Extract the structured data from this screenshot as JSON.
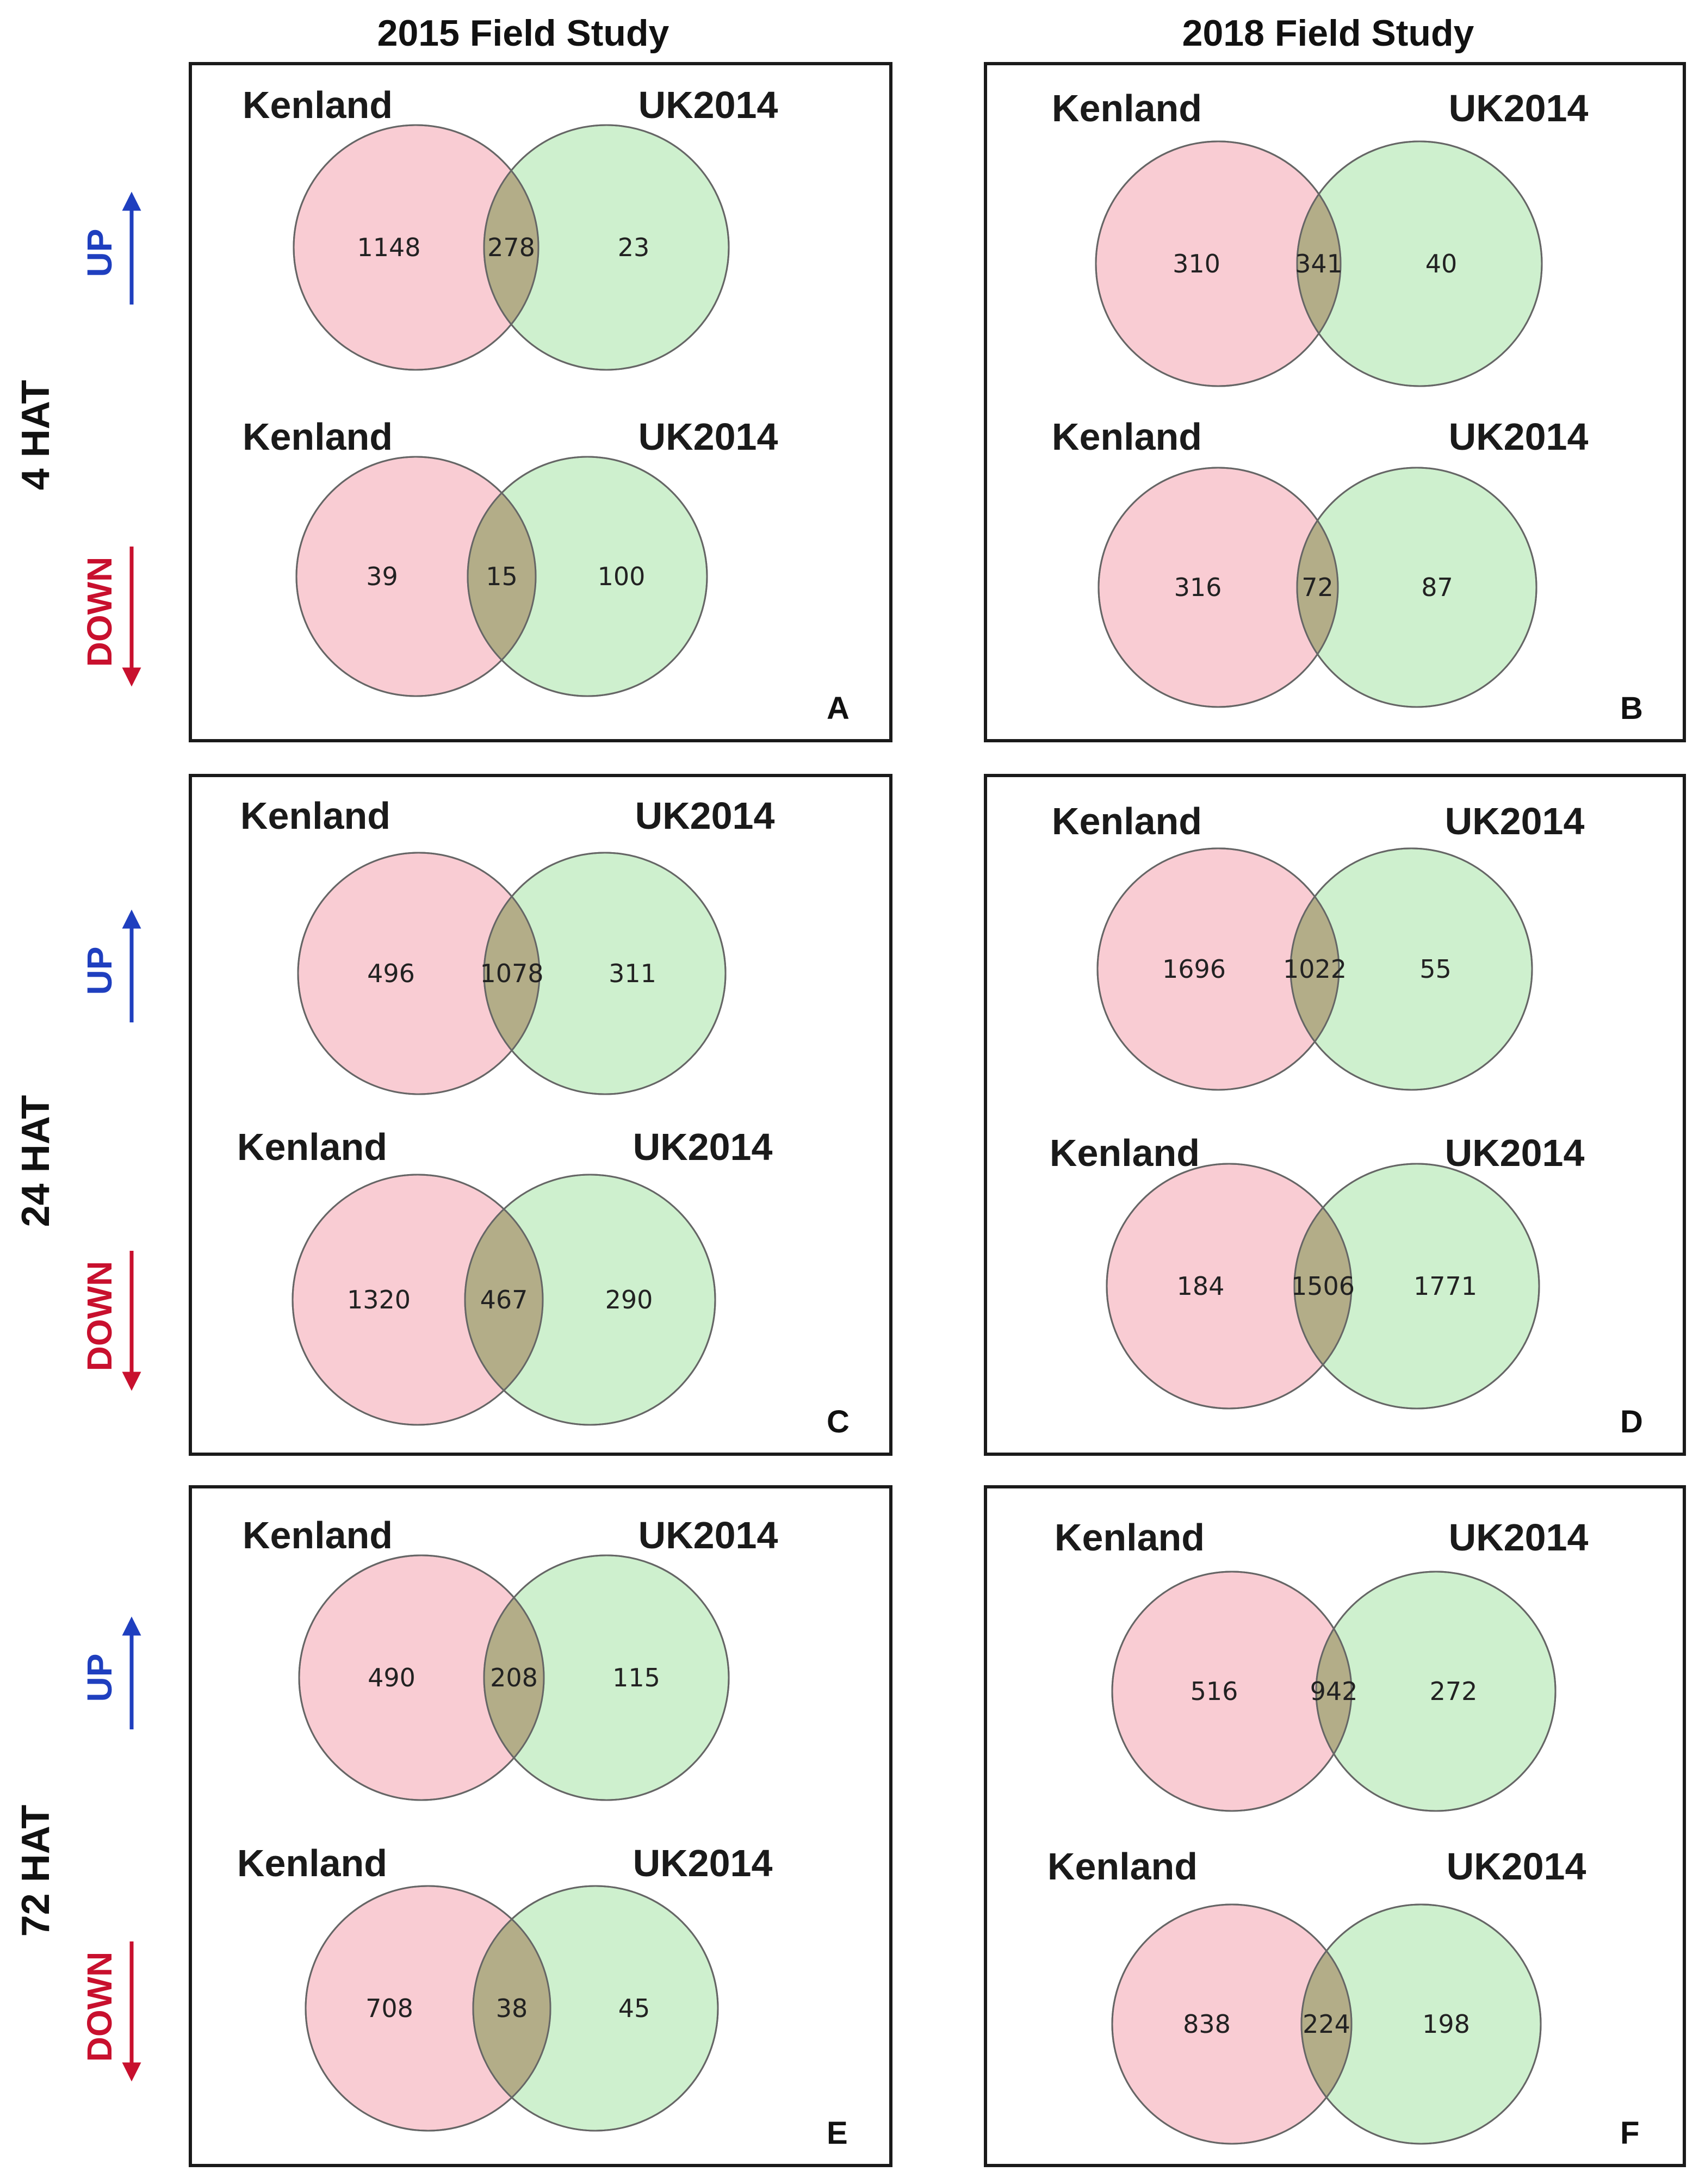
{
  "columns": [
    "2015 Field Study",
    "2018 Field Study"
  ],
  "rows": [
    "4 HAT",
    "24 HAT",
    "72 HAT"
  ],
  "directions": {
    "up": {
      "label": "UP",
      "color": "#1f3fbf"
    },
    "down": {
      "label": "DOWN",
      "color": "#c8102e"
    }
  },
  "colors": {
    "kenland_fill": "#f4a3ae",
    "uk2014_fill": "#9ee29e",
    "overlap_fill": "#b3ad88"
  },
  "panels": [
    {
      "letter": "A",
      "up": {
        "left_label": "Kenland",
        "right_label": "UK2014",
        "left_only": "1148",
        "overlap": "278",
        "right_only": "23"
      },
      "down": {
        "left_label": "Kenland",
        "right_label": "UK2014",
        "left_only": "39",
        "overlap": "15",
        "right_only": "100"
      }
    },
    {
      "letter": "B",
      "up": {
        "left_label": "Kenland",
        "right_label": "UK2014",
        "left_only": "310",
        "overlap": "341",
        "right_only": "40"
      },
      "down": {
        "left_label": "Kenland",
        "right_label": "UK2014",
        "left_only": "316",
        "overlap": "72",
        "right_only": "87"
      }
    },
    {
      "letter": "C",
      "up": {
        "left_label": "Kenland",
        "right_label": "UK2014",
        "left_only": "496",
        "overlap": "1078",
        "right_only": "311"
      },
      "down": {
        "left_label": "Kenland",
        "right_label": "UK2014",
        "left_only": "1320",
        "overlap": "467",
        "right_only": "290"
      }
    },
    {
      "letter": "D",
      "up": {
        "left_label": "Kenland",
        "right_label": "UK2014",
        "left_only": "1696",
        "overlap": "1022",
        "right_only": "55"
      },
      "down": {
        "left_label": "Kenland",
        "right_label": "UK2014",
        "left_only": "184",
        "overlap": "1506",
        "right_only": "1771"
      }
    },
    {
      "letter": "E",
      "up": {
        "left_label": "Kenland",
        "right_label": "UK2014",
        "left_only": "490",
        "overlap": "208",
        "right_only": "115"
      },
      "down": {
        "left_label": "Kenland",
        "right_label": "UK2014",
        "left_only": "708",
        "overlap": "38",
        "right_only": "45"
      }
    },
    {
      "letter": "F",
      "up": {
        "left_label": "Kenland",
        "right_label": "UK2014",
        "left_only": "516",
        "overlap": "942",
        "right_only": "272"
      },
      "down": {
        "left_label": "Kenland",
        "right_label": "UK2014",
        "left_only": "838",
        "overlap": "224",
        "right_only": "198"
      }
    }
  ]
}
